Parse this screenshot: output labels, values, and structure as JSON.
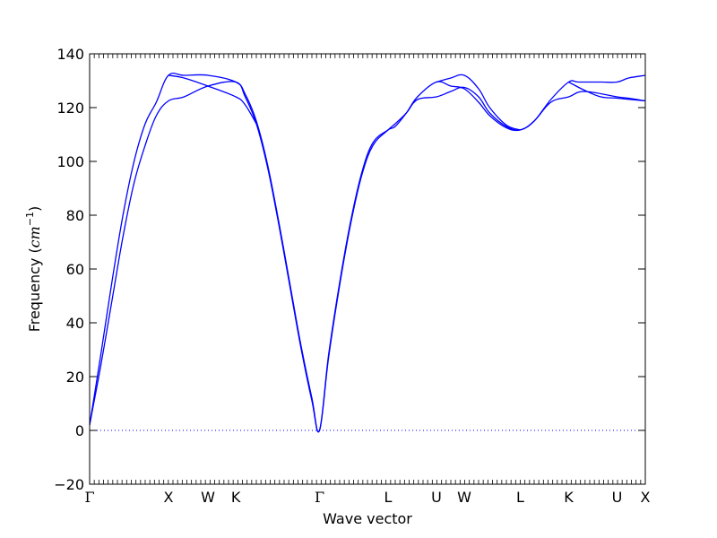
{
  "chart_data": {
    "type": "line",
    "xlabel": "Wave vector",
    "ylabel": "Frequency",
    "ylabel_unit": "cm",
    "ylabel_unit_exponent": "−1",
    "ylim": [
      -20,
      140
    ],
    "y_ticks": [
      -20,
      0,
      20,
      40,
      60,
      80,
      100,
      120,
      140
    ],
    "y_tick_labels": [
      "−20",
      "0",
      "20",
      "40",
      "60",
      "80",
      "100",
      "120",
      "140"
    ],
    "x_range": [
      0,
      1
    ],
    "high_symmetry_points": [
      {
        "label": "Γ",
        "x": 0.0
      },
      {
        "label": "X",
        "x": 0.1419
      },
      {
        "label": "W",
        "x": 0.2129
      },
      {
        "label": "K",
        "x": 0.2631
      },
      {
        "label": "Γ",
        "x": 0.4137
      },
      {
        "label": "L",
        "x": 0.5371
      },
      {
        "label": "U",
        "x": 0.6242
      },
      {
        "label": "W",
        "x": 0.6742
      },
      {
        "label": "L",
        "x": 0.775
      },
      {
        "label": "K",
        "x": 0.8621
      },
      {
        "label": "U",
        "x": 0.9492
      },
      {
        "label": "X",
        "x": 1.0
      }
    ],
    "zero_line": {
      "y": 0,
      "style": "dotted"
    },
    "series": [
      {
        "color": "#0000ff",
        "points": [
          [
            0,
            2
          ],
          [
            0.02,
            28
          ],
          [
            0.04,
            55
          ],
          [
            0.06,
            80
          ],
          [
            0.08,
            100
          ],
          [
            0.1,
            114
          ],
          [
            0.12,
            122
          ],
          [
            0.1419,
            132
          ],
          [
            0.17,
            132
          ],
          [
            0.2129,
            132
          ],
          [
            0.2631,
            129.5
          ],
          [
            0.28,
            125
          ],
          [
            0.3,
            115
          ],
          [
            0.32,
            99
          ],
          [
            0.34,
            78
          ],
          [
            0.36,
            55
          ],
          [
            0.38,
            32
          ],
          [
            0.4,
            12
          ],
          [
            0.4137,
            0
          ],
          [
            0.43,
            28
          ],
          [
            0.45,
            55
          ],
          [
            0.47,
            78
          ],
          [
            0.49,
            96
          ],
          [
            0.51,
            107
          ],
          [
            0.5371,
            111.7
          ],
          [
            0.55,
            113
          ],
          [
            0.57,
            118
          ],
          [
            0.59,
            124
          ],
          [
            0.6242,
            129.5
          ],
          [
            0.65,
            128
          ],
          [
            0.6742,
            127
          ],
          [
            0.7,
            122
          ],
          [
            0.72,
            117
          ],
          [
            0.75,
            112.5
          ],
          [
            0.775,
            111.7
          ],
          [
            0.8,
            115
          ],
          [
            0.83,
            123
          ],
          [
            0.8621,
            129.5
          ],
          [
            0.88,
            129.5
          ],
          [
            0.92,
            129.5
          ],
          [
            0.9492,
            129.5
          ],
          [
            0.97,
            131
          ],
          [
            1.0,
            132
          ]
        ]
      },
      {
        "color": "#0000ff",
        "points": [
          [
            0,
            2
          ],
          [
            0.02,
            24
          ],
          [
            0.04,
            48
          ],
          [
            0.06,
            72
          ],
          [
            0.08,
            92
          ],
          [
            0.1,
            106
          ],
          [
            0.12,
            117
          ],
          [
            0.1419,
            122.5
          ],
          [
            0.17,
            124
          ],
          [
            0.2129,
            128
          ],
          [
            0.2631,
            129.5
          ],
          [
            0.28,
            124
          ],
          [
            0.3,
            114
          ],
          [
            0.32,
            98
          ],
          [
            0.34,
            77
          ],
          [
            0.36,
            54
          ],
          [
            0.38,
            31
          ],
          [
            0.4,
            11
          ],
          [
            0.4137,
            0
          ],
          [
            0.43,
            27
          ],
          [
            0.45,
            54
          ],
          [
            0.47,
            77
          ],
          [
            0.49,
            95
          ],
          [
            0.51,
            106
          ],
          [
            0.5371,
            111.7
          ],
          [
            0.55,
            114
          ],
          [
            0.57,
            118
          ],
          [
            0.59,
            123
          ],
          [
            0.6242,
            124
          ],
          [
            0.65,
            126
          ],
          [
            0.6742,
            127.5
          ],
          [
            0.7,
            124
          ],
          [
            0.72,
            118
          ],
          [
            0.75,
            113
          ],
          [
            0.775,
            111.7
          ],
          [
            0.8,
            115
          ],
          [
            0.83,
            122
          ],
          [
            0.8621,
            124
          ],
          [
            0.89,
            126
          ],
          [
            0.9492,
            124
          ],
          [
            0.97,
            123.5
          ],
          [
            1.0,
            122.5
          ]
        ]
      },
      {
        "color": "#0000ff",
        "points": [
          [
            0.1419,
            132
          ],
          [
            0.17,
            131
          ],
          [
            0.2129,
            128
          ],
          [
            0.2631,
            124
          ],
          [
            0.28,
            121
          ],
          [
            0.3,
            114
          ]
        ]
      },
      {
        "color": "#0000ff",
        "points": [
          [
            0.6242,
            129.5
          ],
          [
            0.65,
            131
          ],
          [
            0.6742,
            132
          ],
          [
            0.7,
            127
          ],
          [
            0.72,
            120
          ],
          [
            0.75,
            113.5
          ],
          [
            0.775,
            111.7
          ]
        ]
      },
      {
        "color": "#0000ff",
        "points": [
          [
            0.8621,
            129.5
          ],
          [
            0.89,
            126.5
          ],
          [
            0.92,
            124
          ],
          [
            0.9492,
            123.5
          ],
          [
            1.0,
            122.5
          ]
        ]
      }
    ]
  }
}
